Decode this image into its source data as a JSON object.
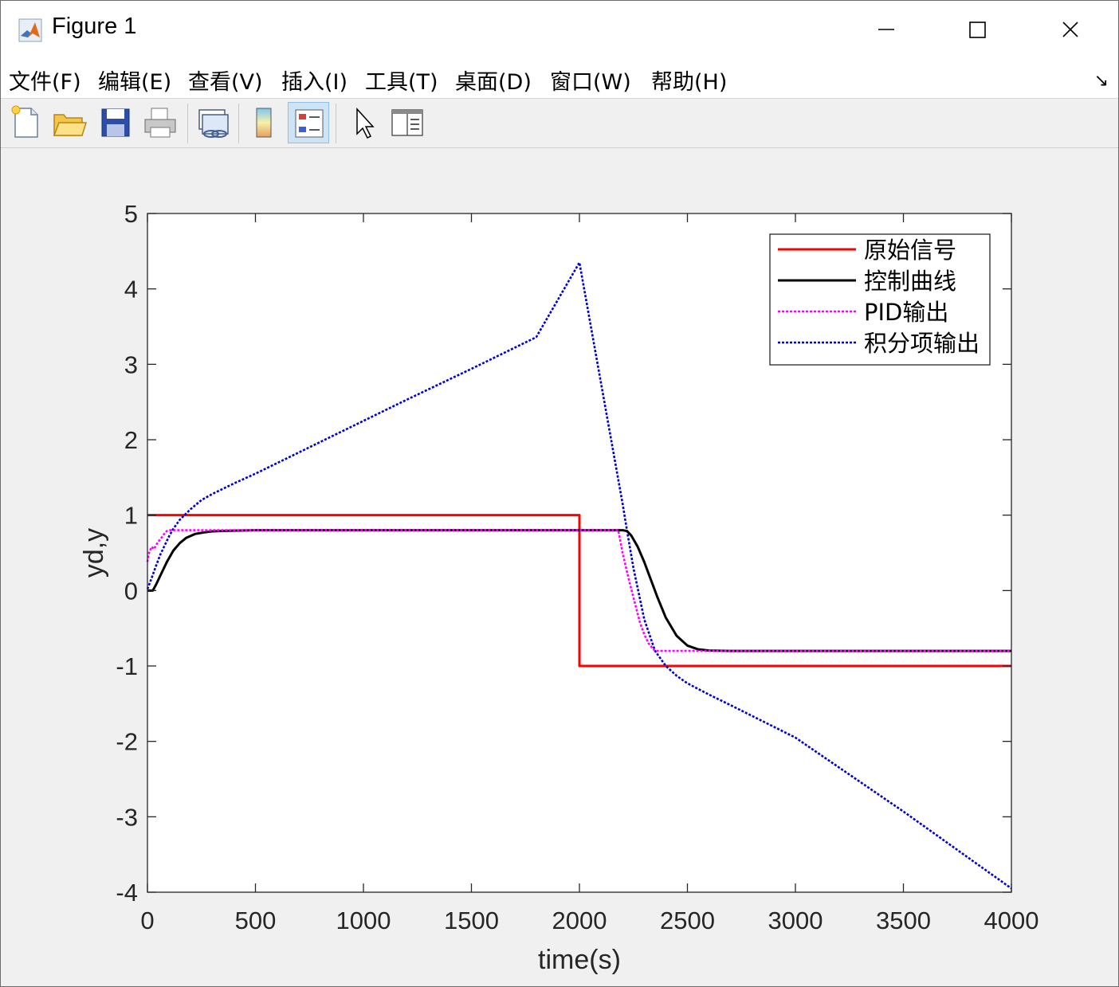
{
  "window": {
    "title": "Figure 1",
    "controls": {
      "minimize": "minimize",
      "maximize": "maximize",
      "close": "close"
    }
  },
  "menu": [
    "文件(F)",
    "编辑(E)",
    "查看(V)",
    "插入(I)",
    "工具(T)",
    "桌面(D)",
    "窗口(W)",
    "帮助(H)"
  ],
  "toolbar": [
    {
      "icon": "new-figure-icon"
    },
    {
      "icon": "open-file-icon"
    },
    {
      "icon": "save-icon"
    },
    {
      "icon": "print-icon"
    },
    {
      "icon": "link-plot-icon"
    },
    {
      "icon": "colorbar-icon"
    },
    {
      "icon": "legend-icon",
      "active": true
    },
    {
      "icon": "pointer-icon"
    },
    {
      "icon": "property-inspector-icon"
    }
  ],
  "chart_data": {
    "type": "line",
    "title": "",
    "xlabel": "time(s)",
    "ylabel": "yd,y",
    "xlim": [
      0,
      4000
    ],
    "ylim": [
      -4,
      5
    ],
    "xticks": [
      0,
      500,
      1000,
      1500,
      2000,
      2500,
      3000,
      3500,
      4000
    ],
    "yticks": [
      -4,
      -3,
      -2,
      -1,
      0,
      1,
      2,
      3,
      4,
      5
    ],
    "grid": false,
    "legend_position": "top-right",
    "series": [
      {
        "name": "原始信号",
        "color": "#ff0000",
        "style": "solid",
        "x": [
          0,
          2000,
          2000,
          4000
        ],
        "y": [
          1,
          1,
          -1,
          -1
        ]
      },
      {
        "name": "控制曲线",
        "color": "#000000",
        "style": "solid",
        "x": [
          0,
          25,
          40,
          60,
          90,
          120,
          150,
          180,
          220,
          260,
          300,
          350,
          400,
          500,
          800,
          1500,
          2000,
          2200,
          2220,
          2240,
          2270,
          2300,
          2330,
          2360,
          2400,
          2450,
          2500,
          2550,
          2600,
          2700,
          3000,
          4000
        ],
        "y": [
          0,
          0,
          0.08,
          0.2,
          0.38,
          0.53,
          0.63,
          0.7,
          0.75,
          0.77,
          0.785,
          0.79,
          0.795,
          0.8,
          0.8,
          0.8,
          0.8,
          0.8,
          0.79,
          0.73,
          0.58,
          0.38,
          0.15,
          -0.08,
          -0.36,
          -0.6,
          -0.73,
          -0.78,
          -0.795,
          -0.8,
          -0.8,
          -0.8
        ]
      },
      {
        "name": "PID输出",
        "color": "#ff00ff",
        "style": "dotted",
        "x": [
          0,
          5,
          10,
          20,
          30,
          40,
          50,
          60,
          70,
          80,
          90,
          100,
          2000,
          2180,
          2200,
          2220,
          2240,
          2260,
          2280,
          2300,
          2320,
          2340,
          2350,
          4000
        ],
        "y": [
          0.38,
          0.48,
          0.52,
          0.58,
          0.55,
          0.6,
          0.65,
          0.68,
          0.72,
          0.76,
          0.79,
          0.8,
          0.8,
          0.8,
          0.5,
          0.25,
          0.02,
          -0.2,
          -0.42,
          -0.58,
          -0.7,
          -0.77,
          -0.8,
          -0.8
        ]
      },
      {
        "name": "积分项输出",
        "color": "#0000cc",
        "style": "dotted",
        "x": [
          0,
          20,
          40,
          60,
          80,
          100,
          120,
          150,
          200,
          250,
          300,
          400,
          500,
          600,
          800,
          1000,
          1200,
          1500,
          1800,
          2000,
          2050,
          2100,
          2150,
          2200,
          2220,
          2250,
          2300,
          2350,
          2400,
          2450,
          2500,
          2600,
          2700,
          3000,
          3500,
          4000
        ],
        "y": [
          0.02,
          0.17,
          0.33,
          0.48,
          0.6,
          0.72,
          0.82,
          0.94,
          1.08,
          1.2,
          1.28,
          1.42,
          1.55,
          1.69,
          1.97,
          2.25,
          2.53,
          2.94,
          3.36,
          4.35,
          3.55,
          2.75,
          1.95,
          1.15,
          0.8,
          0.3,
          -0.38,
          -0.8,
          -1.0,
          -1.13,
          -1.23,
          -1.38,
          -1.52,
          -1.95,
          -2.93,
          -3.95
        ]
      }
    ]
  }
}
